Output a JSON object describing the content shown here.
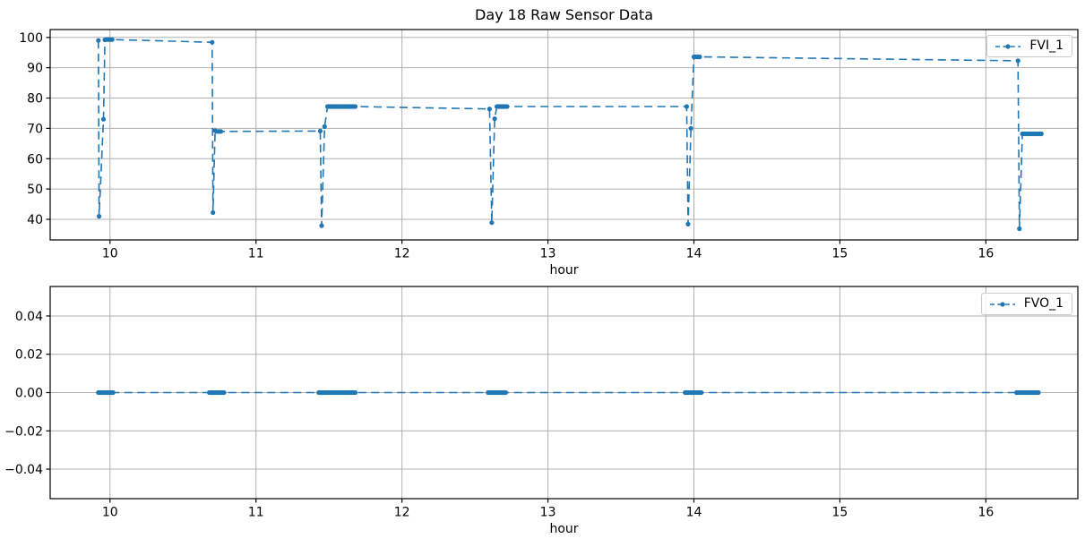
{
  "figure": {
    "title": "Day 18 Raw Sensor Data",
    "background": "#ffffff"
  },
  "colors": {
    "series": "#1f77b4",
    "grid": "#b0b0b0",
    "spine": "#000000",
    "legend_border": "#cccccc"
  },
  "chart_data": [
    {
      "type": "line",
      "subplot": "top",
      "title": "Day 18 Raw Sensor Data",
      "xlabel": "hour",
      "ylabel": "",
      "grid": true,
      "line_style": "dashed",
      "marker": "point",
      "legend_position": "upper right",
      "xlim": [
        9.59,
        16.63
      ],
      "ylim": [
        33.2,
        102.6
      ],
      "xticks": [
        10,
        11,
        12,
        13,
        14,
        15,
        16
      ],
      "xtick_labels": [
        "10",
        "11",
        "12",
        "13",
        "14",
        "15",
        "16"
      ],
      "yticks": [
        40,
        50,
        60,
        70,
        80,
        90,
        100
      ],
      "ytick_labels": [
        "40",
        "50",
        "60",
        "70",
        "80",
        "90",
        "100"
      ],
      "series": [
        {
          "name": "FVI_1",
          "points": [
            [
              9.92,
              99
            ],
            [
              9.925,
              41
            ],
            [
              9.955,
              73
            ],
            [
              9.965,
              99.2
            ],
            [
              9.975,
              99.3
            ],
            [
              9.983,
              99.3
            ],
            [
              9.991,
              99.3
            ],
            [
              9.999,
              99.3
            ],
            [
              10.007,
              99.3
            ],
            [
              10.015,
              99.3
            ],
            [
              10.7,
              98.4
            ],
            [
              10.705,
              42.2
            ],
            [
              10.72,
              69.3
            ],
            [
              10.73,
              69
            ],
            [
              10.74,
              69
            ],
            [
              10.75,
              69
            ],
            [
              10.76,
              69
            ],
            [
              11.44,
              69.1
            ],
            [
              11.45,
              37.9
            ],
            [
              11.47,
              70.6
            ],
            [
              11.49,
              77.2
            ],
            [
              11.5,
              77.2
            ],
            [
              11.51,
              77.2
            ],
            [
              11.52,
              77.2
            ],
            [
              11.53,
              77.2
            ],
            [
              11.54,
              77.2
            ],
            [
              11.55,
              77.2
            ],
            [
              11.56,
              77.2
            ],
            [
              11.57,
              77.2
            ],
            [
              11.58,
              77.2
            ],
            [
              11.59,
              77.2
            ],
            [
              11.6,
              77.2
            ],
            [
              11.61,
              77.2
            ],
            [
              11.62,
              77.2
            ],
            [
              11.63,
              77.2
            ],
            [
              11.64,
              77.2
            ],
            [
              11.65,
              77.2
            ],
            [
              11.66,
              77.2
            ],
            [
              11.67,
              77.2
            ],
            [
              11.68,
              77.2
            ],
            [
              12.6,
              76.4
            ],
            [
              12.615,
              38.9
            ],
            [
              12.635,
              73.2
            ],
            [
              12.65,
              77.2
            ],
            [
              12.66,
              77.2
            ],
            [
              12.67,
              77.2
            ],
            [
              12.68,
              77.2
            ],
            [
              12.69,
              77.2
            ],
            [
              12.7,
              77.2
            ],
            [
              12.71,
              77.2
            ],
            [
              12.72,
              77.2
            ],
            [
              13.95,
              77.2
            ],
            [
              13.96,
              38.4
            ],
            [
              13.98,
              70
            ],
            [
              14,
              93.6
            ],
            [
              14.01,
              93.6
            ],
            [
              14.02,
              93.6
            ],
            [
              14.03,
              93.6
            ],
            [
              14.04,
              93.6
            ],
            [
              16.22,
              92.3
            ],
            [
              16.23,
              36.9
            ],
            [
              16.25,
              68.2
            ],
            [
              16.26,
              68.2
            ],
            [
              16.27,
              68.2
            ],
            [
              16.28,
              68.2
            ],
            [
              16.29,
              68.2
            ],
            [
              16.3,
              68.2
            ],
            [
              16.31,
              68.2
            ],
            [
              16.32,
              68.2
            ],
            [
              16.33,
              68.2
            ],
            [
              16.34,
              68.2
            ],
            [
              16.35,
              68.2
            ],
            [
              16.36,
              68.2
            ],
            [
              16.37,
              68.2
            ],
            [
              16.38,
              68.2
            ]
          ]
        }
      ]
    },
    {
      "type": "line",
      "subplot": "bottom",
      "title": "",
      "xlabel": "hour",
      "ylabel": "",
      "grid": true,
      "line_style": "dashed",
      "marker": "point",
      "legend_position": "upper right",
      "xlim": [
        9.59,
        16.63
      ],
      "ylim": [
        -0.0554,
        0.0554
      ],
      "xticks": [
        10,
        11,
        12,
        13,
        14,
        15,
        16
      ],
      "xtick_labels": [
        "10",
        "11",
        "12",
        "13",
        "14",
        "15",
        "16"
      ],
      "yticks": [
        -0.04,
        -0.02,
        0,
        0.02,
        0.04
      ],
      "ytick_labels": [
        "−0.04",
        "−0.02",
        "0.00",
        "0.02",
        "0.04"
      ],
      "series": [
        {
          "name": "FVO_1",
          "points": [
            [
              9.92,
              0
            ],
            [
              9.93,
              0
            ],
            [
              9.94,
              0
            ],
            [
              9.95,
              0
            ],
            [
              9.96,
              0
            ],
            [
              9.97,
              0
            ],
            [
              9.98,
              0
            ],
            [
              9.99,
              0
            ],
            [
              10,
              0
            ],
            [
              10.01,
              0
            ],
            [
              10.02,
              0
            ],
            [
              10.68,
              0
            ],
            [
              10.69,
              0
            ],
            [
              10.7,
              0
            ],
            [
              10.71,
              0
            ],
            [
              10.72,
              0
            ],
            [
              10.73,
              0
            ],
            [
              10.74,
              0
            ],
            [
              10.75,
              0
            ],
            [
              10.76,
              0
            ],
            [
              10.77,
              0
            ],
            [
              10.78,
              0
            ],
            [
              11.43,
              0
            ],
            [
              11.44,
              0
            ],
            [
              11.45,
              0
            ],
            [
              11.46,
              0
            ],
            [
              11.47,
              0
            ],
            [
              11.48,
              0
            ],
            [
              11.49,
              0
            ],
            [
              11.5,
              0
            ],
            [
              11.51,
              0
            ],
            [
              11.52,
              0
            ],
            [
              11.53,
              0
            ],
            [
              11.54,
              0
            ],
            [
              11.55,
              0
            ],
            [
              11.56,
              0
            ],
            [
              11.57,
              0
            ],
            [
              11.58,
              0
            ],
            [
              11.59,
              0
            ],
            [
              11.6,
              0
            ],
            [
              11.61,
              0
            ],
            [
              11.62,
              0
            ],
            [
              11.63,
              0
            ],
            [
              11.64,
              0
            ],
            [
              11.65,
              0
            ],
            [
              11.66,
              0
            ],
            [
              11.67,
              0
            ],
            [
              11.68,
              0
            ],
            [
              12.59,
              0
            ],
            [
              12.6,
              0
            ],
            [
              12.61,
              0
            ],
            [
              12.62,
              0
            ],
            [
              12.63,
              0
            ],
            [
              12.64,
              0
            ],
            [
              12.65,
              0
            ],
            [
              12.66,
              0
            ],
            [
              12.67,
              0
            ],
            [
              12.68,
              0
            ],
            [
              12.69,
              0
            ],
            [
              12.7,
              0
            ],
            [
              12.71,
              0
            ],
            [
              13.94,
              0
            ],
            [
              13.95,
              0
            ],
            [
              13.96,
              0
            ],
            [
              13.97,
              0
            ],
            [
              13.98,
              0
            ],
            [
              13.99,
              0
            ],
            [
              14,
              0
            ],
            [
              14.01,
              0
            ],
            [
              14.02,
              0
            ],
            [
              14.03,
              0
            ],
            [
              14.04,
              0
            ],
            [
              14.05,
              0
            ],
            [
              16.21,
              0
            ],
            [
              16.22,
              0
            ],
            [
              16.23,
              0
            ],
            [
              16.24,
              0
            ],
            [
              16.25,
              0
            ],
            [
              16.26,
              0
            ],
            [
              16.27,
              0
            ],
            [
              16.28,
              0
            ],
            [
              16.29,
              0
            ],
            [
              16.3,
              0
            ],
            [
              16.31,
              0
            ],
            [
              16.32,
              0
            ],
            [
              16.33,
              0
            ],
            [
              16.34,
              0
            ],
            [
              16.35,
              0
            ],
            [
              16.36,
              0
            ]
          ]
        }
      ]
    }
  ]
}
